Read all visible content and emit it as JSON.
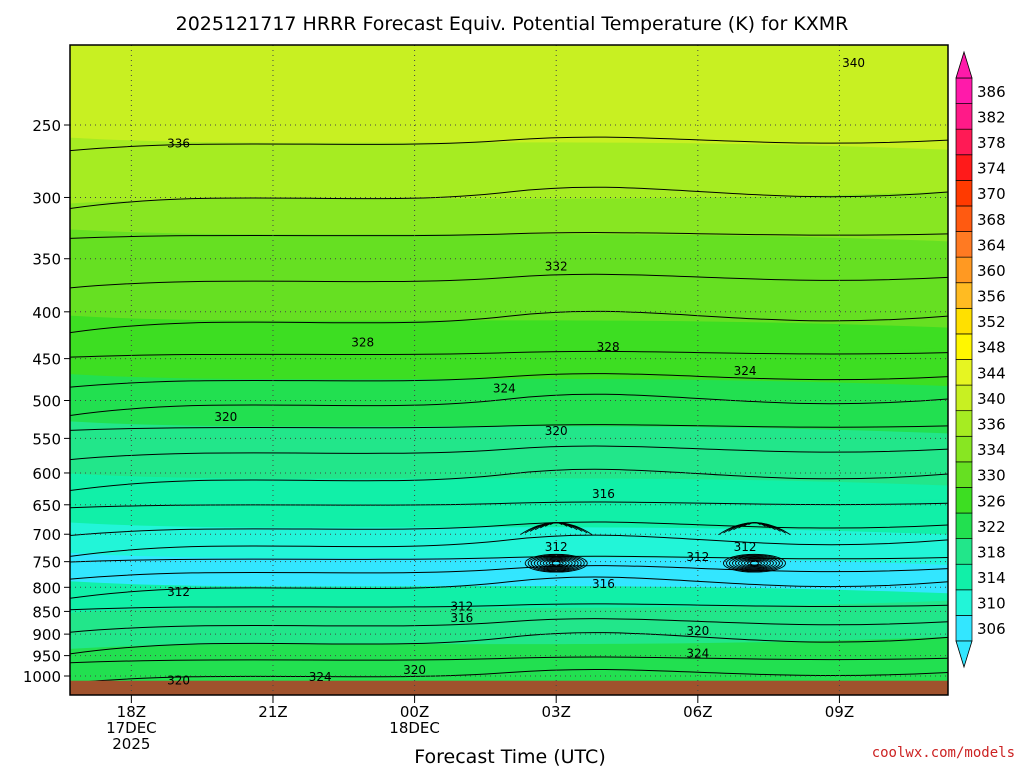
{
  "title": "2025121717 HRRR Forecast Equiv. Potential Temperature (K) for KXMR",
  "credit": "coolwx.com/models",
  "credit_color": "#cc2222",
  "chart_data": {
    "type": "contour",
    "variable": "Equivalent potential temperature",
    "units": "K",
    "model": "HRRR",
    "init": "2025121717",
    "station": "KXMR",
    "xlabel": "Forecast Time (UTC)",
    "ylabel": "",
    "y_scale": "log (pressure, inverted)",
    "ylim": [
      1020,
      200
    ],
    "x_ticks": [
      {
        "hour": 18,
        "lines": [
          "18Z",
          "17DEC",
          "2025"
        ]
      },
      {
        "hour": 21,
        "lines": [
          "21Z"
        ]
      },
      {
        "hour": 24,
        "lines": [
          "00Z",
          "18DEC"
        ]
      },
      {
        "hour": 27,
        "lines": [
          "03Z"
        ]
      },
      {
        "hour": 30,
        "lines": [
          "06Z"
        ]
      },
      {
        "hour": 33,
        "lines": [
          "09Z"
        ]
      }
    ],
    "y_ticks": [
      250,
      300,
      350,
      400,
      450,
      500,
      550,
      600,
      650,
      700,
      750,
      800,
      850,
      900,
      950,
      1000
    ],
    "grid": true,
    "colorbar": {
      "levels": [
        306,
        310,
        314,
        318,
        322,
        326,
        330,
        334,
        336,
        340,
        344,
        348,
        352,
        356,
        360,
        364,
        368,
        370,
        374,
        378,
        382,
        386
      ],
      "colors": [
        "#33e6ff",
        "#22f5d8",
        "#11f0a8",
        "#22e68a",
        "#22e050",
        "#3dde22",
        "#66e022",
        "#88e622",
        "#a6ec22",
        "#c8f022",
        "#e6f522",
        "#fff700",
        "#ffe000",
        "#ffbb22",
        "#ff9922",
        "#ff7a22",
        "#ff5a11",
        "#ff3a00",
        "#ff1a1a",
        "#ff1a55",
        "#ff1a88",
        "#ff1aaa"
      ],
      "tick_labels": [
        "306",
        "310",
        "314",
        "318",
        "322",
        "326",
        "330",
        "334",
        "336",
        "340",
        "344",
        "348",
        "352",
        "356",
        "360",
        "364",
        "368",
        "370",
        "374",
        "378",
        "382",
        "386"
      ]
    },
    "contour_labels": [
      {
        "value": "340",
        "hour": 33.3,
        "p": 214
      },
      {
        "value": "336",
        "hour": 19.0,
        "p": 262
      },
      {
        "value": "332",
        "hour": 27.0,
        "p": 357
      },
      {
        "value": "328",
        "hour": 22.9,
        "p": 432
      },
      {
        "value": "328",
        "hour": 28.1,
        "p": 437
      },
      {
        "value": "324",
        "hour": 25.9,
        "p": 485
      },
      {
        "value": "324",
        "hour": 31.0,
        "p": 464
      },
      {
        "value": "320",
        "hour": 20.0,
        "p": 521
      },
      {
        "value": "320",
        "hour": 27.0,
        "p": 540
      },
      {
        "value": "316",
        "hour": 28.0,
        "p": 633
      },
      {
        "value": "312",
        "hour": 27.0,
        "p": 723
      },
      {
        "value": "312",
        "hour": 30.0,
        "p": 741
      },
      {
        "value": "312",
        "hour": 31.0,
        "p": 723
      },
      {
        "value": "316",
        "hour": 28.0,
        "p": 793
      },
      {
        "value": "312",
        "hour": 19.0,
        "p": 810
      },
      {
        "value": "312",
        "hour": 25.0,
        "p": 840
      },
      {
        "value": "316",
        "hour": 25.0,
        "p": 864
      },
      {
        "value": "320",
        "hour": 30.0,
        "p": 893
      },
      {
        "value": "324",
        "hour": 30.0,
        "p": 945
      },
      {
        "value": "320",
        "hour": 24.0,
        "p": 985
      },
      {
        "value": "324",
        "hour": 22.0,
        "p": 1003
      },
      {
        "value": "320",
        "hour": 19.0,
        "p": 1012
      }
    ],
    "shading": {
      "band_values": [
        340,
        336,
        334,
        332,
        330,
        328,
        326,
        324,
        322,
        320,
        318,
        316,
        314,
        312,
        310,
        308,
        306,
        314,
        318,
        320,
        322,
        324,
        322
      ],
      "band_pressures": [
        200,
        262,
        300,
        330,
        370,
        410,
        445,
        475,
        505,
        535,
        570,
        610,
        650,
        690,
        720,
        745,
        770,
        800,
        840,
        880,
        920,
        960,
        1000
      ],
      "surface_color": "#a0522d"
    }
  }
}
